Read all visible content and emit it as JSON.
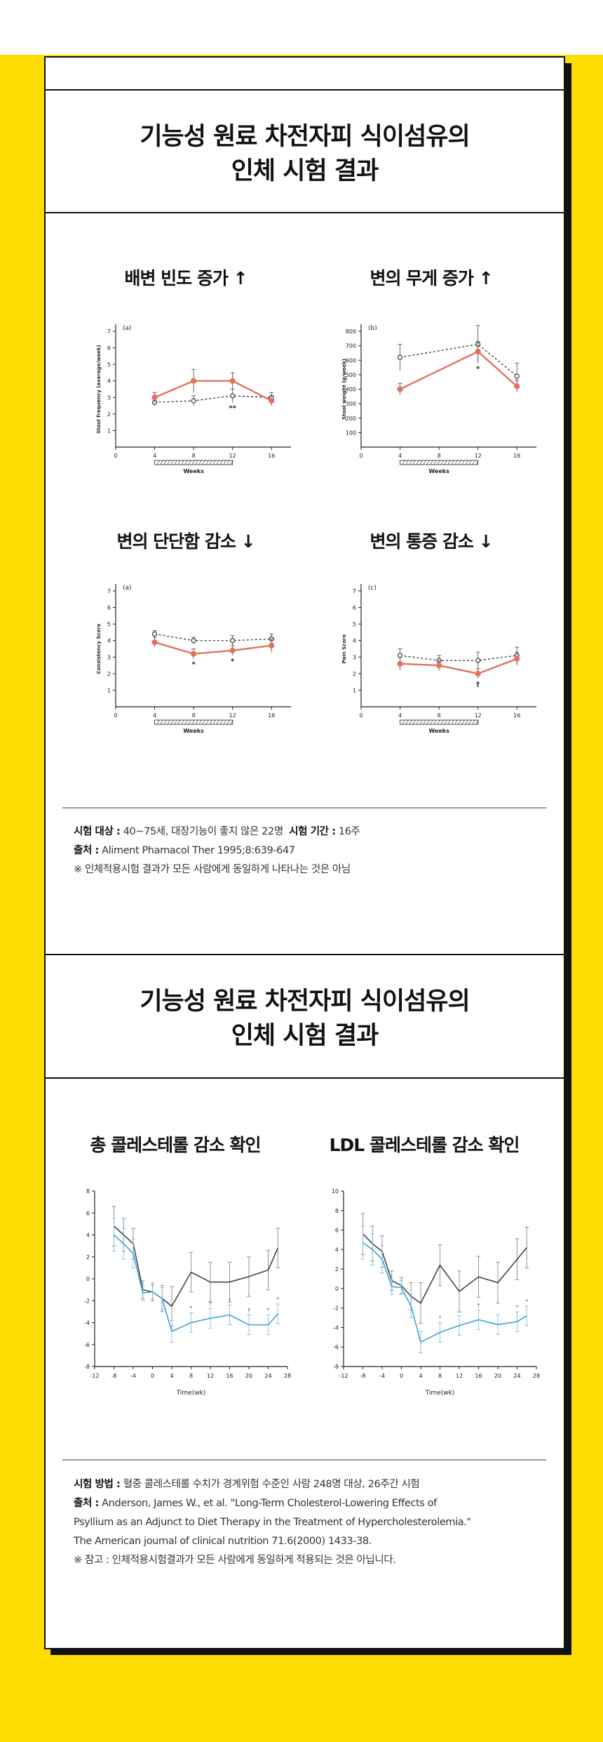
{
  "section1": {
    "title_line1": "기능성 원료 차전자피 식이섬유의",
    "title_line2": "인체 시험 결과",
    "notes": {
      "subject_label": "시험 대상 :",
      "subject_value": "40~75세, 대장기능이 좋지 않은 22명",
      "period_label": "시험 기간 :",
      "period_value": "16주",
      "source_label": "출처 :",
      "source_value": "Aliment Phamacol Ther 1995;8:639-647",
      "disclaimer": "※ 인체적용시험 결과가 모든 사람에게 동일하게 나타나는 것은 아님"
    }
  },
  "section2": {
    "title_line1": "기능성 원료 차전자피 식이섬유의",
    "title_line2": "인체 시험 결과",
    "notes": {
      "method_label": "시험 방법 :",
      "method_value": "혈중 콜레스테롤 수치가 경계위험 수준인 사람 248명 대상, 26주간 시험",
      "source_label": "출처 :",
      "source_line1": "Anderson, James W., et al. \"Long-Term Cholesterol-Lowering Effects of",
      "source_line2": "Psyllium as an Adjunct to Diet Therapy in the Treatment of Hypercholesterolemia.\"",
      "source_line3": "The American journal of clinical nutrition 71.6(2000) 1433-38.",
      "disclaimer": "※ 참고 : 인체적용시험결과가 모든 사람에게 동일하게 적용되는 것은 아닙니다."
    }
  },
  "colors": {
    "treatment": "#e2725b",
    "control": "#444444",
    "ldl_treatment": "#3fa3d8",
    "background": "#fedc00"
  },
  "chart_data": [
    {
      "id": "c1",
      "type": "line",
      "heading": "배변 빈도 증가 ↑",
      "panel": "(a)",
      "xlabel": "Weeks",
      "ylabel": "Stool frequency (average/week)",
      "x": [
        4,
        8,
        12,
        16
      ],
      "xticks": [
        0,
        4,
        8,
        12,
        16
      ],
      "ylim": [
        0,
        7
      ],
      "yticks": [
        1,
        2,
        3,
        4,
        5,
        6,
        7
      ],
      "xlim": [
        0,
        18
      ],
      "treatment_window": [
        4,
        12
      ],
      "series": [
        {
          "role": "treatment",
          "values": [
            3.0,
            4.0,
            4.0,
            2.8
          ],
          "err": [
            0.3,
            0.7,
            0.5,
            0.3
          ]
        },
        {
          "role": "control",
          "values": [
            2.7,
            2.8,
            3.1,
            3.0
          ],
          "err": [
            0.2,
            0.3,
            0.4,
            0.3
          ]
        }
      ],
      "annotations": [
        {
          "x": 12,
          "text": "**"
        }
      ]
    },
    {
      "id": "c2",
      "type": "line",
      "heading": "변의 무게 증가 ↑",
      "panel": "(b)",
      "xlabel": "Weeks",
      "ylabel": "Stool weight (g/week)",
      "x": [
        4,
        12,
        16
      ],
      "xticks": [
        0,
        4,
        8,
        12,
        16
      ],
      "ylim": [
        0,
        800
      ],
      "yticks": [
        100,
        200,
        300,
        400,
        500,
        600,
        700,
        800
      ],
      "xlim": [
        0,
        18
      ],
      "treatment_window": [
        4,
        12
      ],
      "series": [
        {
          "role": "treatment",
          "values": [
            400,
            660,
            420
          ],
          "err": [
            40,
            70,
            40
          ]
        },
        {
          "role": "control",
          "values": [
            620,
            710,
            490
          ],
          "err": [
            90,
            130,
            90
          ]
        }
      ],
      "annotations": [
        {
          "x": 12,
          "text": "*"
        }
      ]
    },
    {
      "id": "c3",
      "type": "line",
      "heading": "변의 단단함 감소 ↓",
      "panel": "(a)",
      "xlabel": "Weeks",
      "ylabel": "Consistency Score",
      "x": [
        4,
        8,
        12,
        16
      ],
      "xticks": [
        0,
        4,
        8,
        12,
        16
      ],
      "ylim": [
        0,
        7
      ],
      "yticks": [
        1,
        2,
        3,
        4,
        5,
        6,
        7
      ],
      "xlim": [
        0,
        18
      ],
      "treatment_window": [
        4,
        12
      ],
      "series": [
        {
          "role": "treatment",
          "values": [
            3.9,
            3.2,
            3.4,
            3.7
          ],
          "err": [
            0.3,
            0.3,
            0.3,
            0.4
          ]
        },
        {
          "role": "control",
          "values": [
            4.4,
            4.0,
            4.0,
            4.1
          ],
          "err": [
            0.2,
            0.2,
            0.3,
            0.3
          ]
        }
      ],
      "annotations": [
        {
          "x": 8,
          "text": "*"
        },
        {
          "x": 12,
          "text": "*"
        }
      ]
    },
    {
      "id": "c4",
      "type": "line",
      "heading": "변의 통증 감소 ↓",
      "panel": "(c)",
      "xlabel": "Weeks",
      "ylabel": "Pain Score",
      "x": [
        4,
        8,
        12,
        16
      ],
      "xticks": [
        0,
        4,
        8,
        12,
        16
      ],
      "ylim": [
        0,
        7
      ],
      "yticks": [
        1,
        2,
        3,
        4,
        5,
        6,
        7
      ],
      "xlim": [
        0,
        18
      ],
      "treatment_window": [
        4,
        12
      ],
      "series": [
        {
          "role": "treatment",
          "values": [
            2.6,
            2.5,
            2.0,
            2.9
          ],
          "err": [
            0.4,
            0.3,
            0.3,
            0.4
          ]
        },
        {
          "role": "control",
          "values": [
            3.1,
            2.8,
            2.8,
            3.1
          ],
          "err": [
            0.4,
            0.3,
            0.5,
            0.5
          ]
        }
      ],
      "annotations": [
        {
          "x": 12,
          "text": "†"
        }
      ]
    },
    {
      "id": "c5",
      "type": "line",
      "heading": "총 콜레스테롤 감소 확인",
      "xlabel": "Time(wk)",
      "x": [
        -8,
        -6,
        -4,
        -2,
        0,
        2,
        4,
        8,
        12,
        16,
        20,
        24,
        26
      ],
      "xticks": [
        -12,
        -8,
        -4,
        0,
        4,
        8,
        12,
        16,
        20,
        24,
        28
      ],
      "xlim": [
        -12,
        28
      ],
      "ylim": [
        -8,
        8
      ],
      "yticks": [
        -8,
        -6,
        -4,
        -2,
        0,
        2,
        4,
        6,
        8
      ],
      "series": [
        {
          "role": "control",
          "values": [
            4.8,
            4.0,
            3.2,
            -1.0,
            -1.2,
            -1.8,
            -2.5,
            0.6,
            -0.3,
            -0.3,
            0.2,
            0.8,
            2.8
          ],
          "err": [
            1.8,
            1.5,
            1.4,
            0.8,
            0.8,
            1.2,
            1.8,
            1.8,
            1.8,
            1.8,
            1.8,
            1.8,
            1.8
          ]
        },
        {
          "role": "treatment",
          "values": [
            4.0,
            3.2,
            2.3,
            -1.3,
            -1.2,
            -1.8,
            -4.8,
            -4.0,
            -3.6,
            -3.3,
            -4.2,
            -4.2,
            -3.2
          ],
          "err": [
            1.5,
            1.4,
            1.3,
            0.7,
            0.6,
            1.0,
            1.0,
            0.9,
            0.9,
            0.9,
            0.9,
            0.9,
            0.9
          ]
        }
      ],
      "annotations": [
        {
          "x": 8,
          "text": "*"
        },
        {
          "x": 12,
          "text": "†"
        },
        {
          "x": 16,
          "text": "*"
        },
        {
          "x": 20,
          "text": "†"
        },
        {
          "x": 24,
          "text": "*"
        },
        {
          "x": 26,
          "text": "*"
        }
      ]
    },
    {
      "id": "c6",
      "type": "line",
      "heading": "LDL 콜레스테롤 감소 확인",
      "xlabel": "Time(wk)",
      "x": [
        -8,
        -6,
        -4,
        -2,
        0,
        2,
        4,
        8,
        12,
        16,
        20,
        24,
        26
      ],
      "xticks": [
        -12,
        -8,
        -4,
        0,
        4,
        8,
        12,
        16,
        20,
        24,
        28
      ],
      "xlim": [
        -12,
        28
      ],
      "ylim": [
        -8,
        10
      ],
      "yticks": [
        -8,
        -6,
        -4,
        -2,
        0,
        2,
        4,
        6,
        8,
        10
      ],
      "series": [
        {
          "role": "control",
          "values": [
            5.6,
            4.6,
            3.8,
            0.8,
            0.3,
            -0.8,
            -1.5,
            2.4,
            -0.3,
            1.2,
            0.6,
            3.0,
            4.2
          ],
          "err": [
            2.1,
            1.8,
            1.6,
            1.0,
            0.8,
            1.4,
            2.1,
            2.1,
            2.1,
            2.1,
            2.1,
            2.1,
            2.1
          ]
        },
        {
          "role": "treatment",
          "values": [
            4.7,
            4.0,
            3.0,
            0.2,
            0.1,
            -1.8,
            -5.5,
            -4.5,
            -3.8,
            -3.2,
            -3.7,
            -3.4,
            -2.8
          ],
          "err": [
            1.7,
            1.6,
            1.4,
            0.8,
            0.7,
            1.2,
            1.1,
            1.0,
            1.0,
            1.0,
            1.0,
            1.0,
            1.0
          ]
        }
      ],
      "annotations": [
        {
          "x": 8,
          "text": "*"
        },
        {
          "x": 16,
          "text": "†"
        },
        {
          "x": 24,
          "text": "*"
        },
        {
          "x": 26,
          "text": "*"
        }
      ]
    }
  ]
}
